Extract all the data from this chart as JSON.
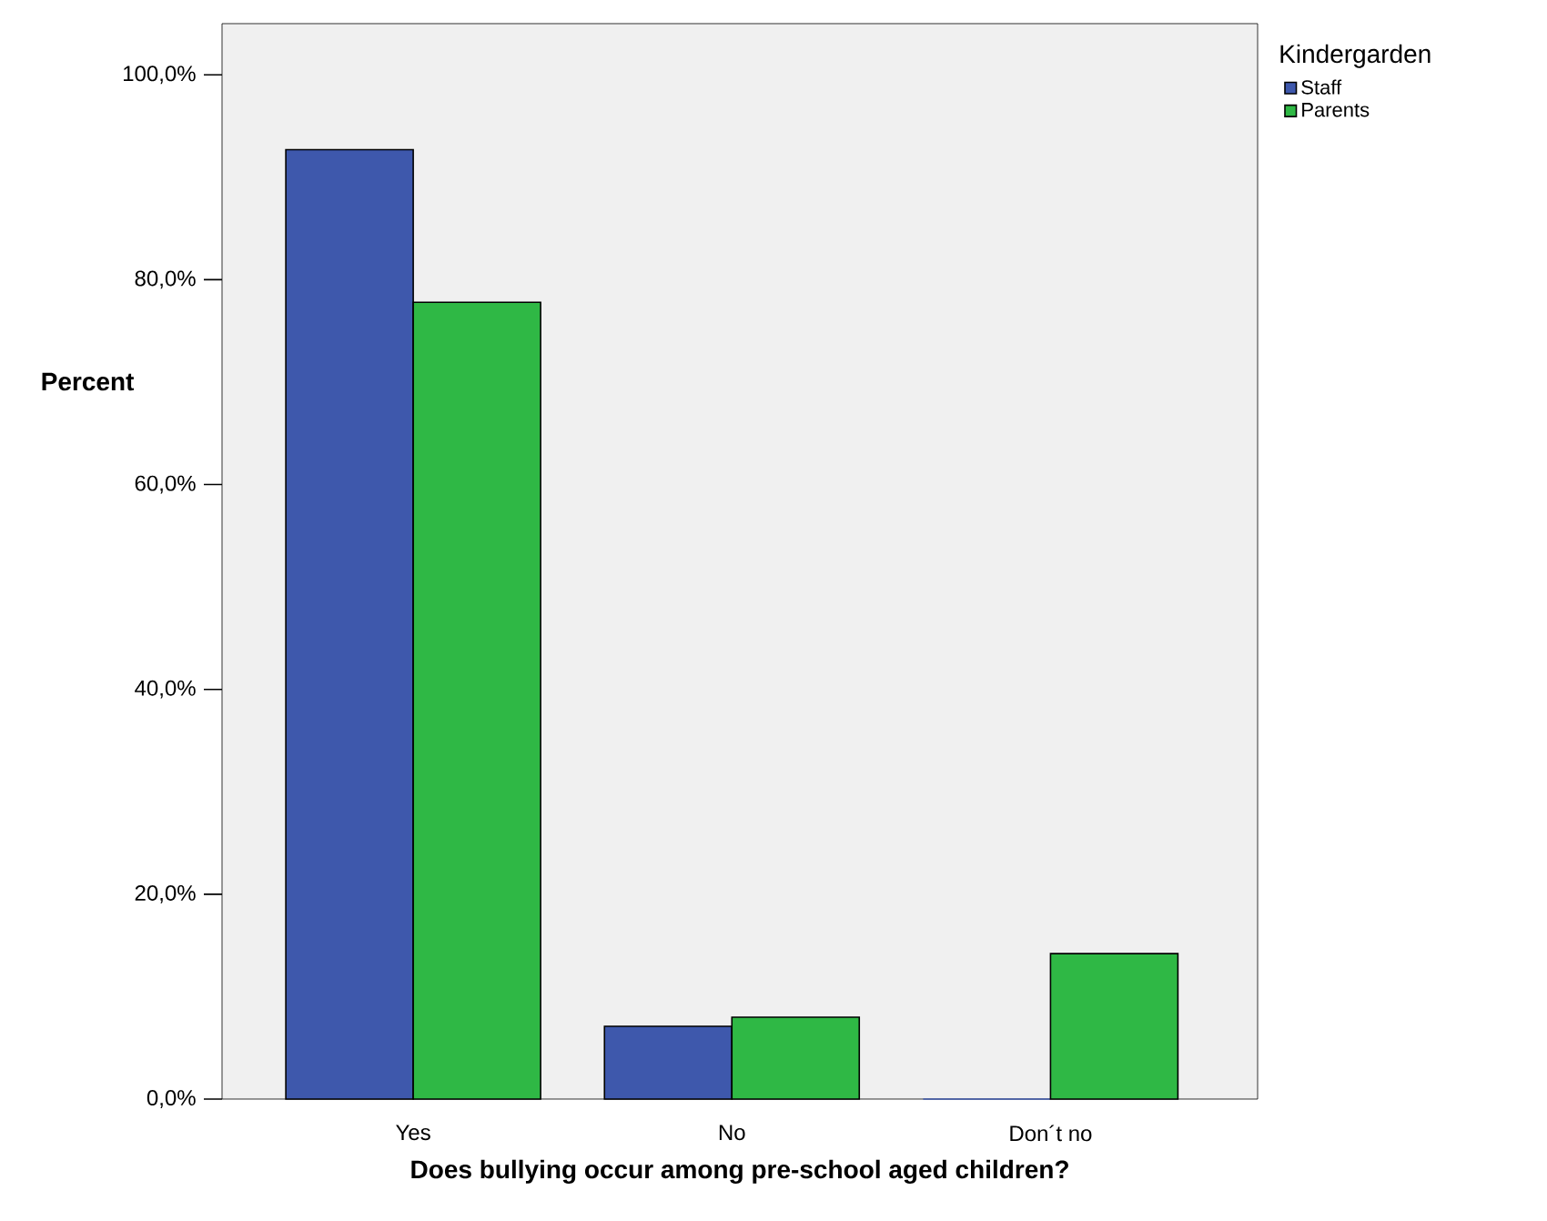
{
  "chart_data": {
    "type": "bar",
    "xlabel": "Does bullying occur among pre-school aged children?",
    "ylabel": "Percent",
    "legend_title": "Kindergarden",
    "categories": [
      "Yes",
      "No",
      "Don´t no"
    ],
    "series": [
      {
        "name": "Staff",
        "color": "#3e58ac",
        "values": [
          92.7,
          7.1,
          0
        ]
      },
      {
        "name": "Parents",
        "color": "#2fb845",
        "values": [
          77.8,
          8.0,
          14.2
        ]
      }
    ],
    "ylim": [
      0,
      105
    ],
    "yticks": [
      {
        "value": 0,
        "label": "0,0%"
      },
      {
        "value": 20,
        "label": "20,0%"
      },
      {
        "value": 40,
        "label": "40,0%"
      },
      {
        "value": 60,
        "label": "60,0%"
      },
      {
        "value": 80,
        "label": "80,0%"
      },
      {
        "value": 100,
        "label": "100,0%"
      }
    ],
    "grid": false,
    "legend": "top right"
  }
}
